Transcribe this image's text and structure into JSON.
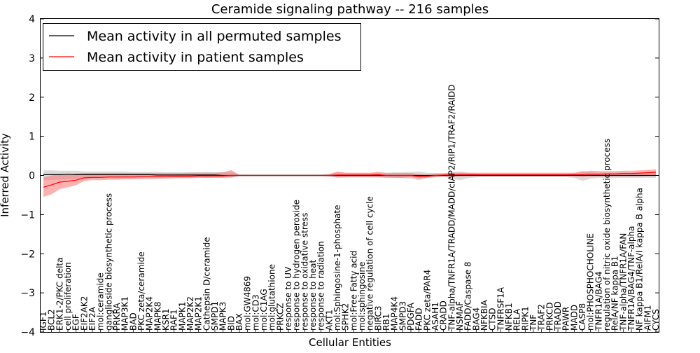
{
  "chart_data": {
    "type": "line",
    "title": "Ceramide signaling pathway -- 216 samples",
    "xlabel": "Cellular Entities",
    "ylabel": "Inferred Activity",
    "ylim": [
      -4,
      4
    ],
    "yticks": [
      -4,
      -3,
      -2,
      -1,
      0,
      1,
      2,
      3,
      4
    ],
    "legend_position": "top-left",
    "colors": {
      "permuted": "#000000",
      "patient": "#ff0000",
      "permuted_band": "#bbbbbb",
      "patient_band": "#ff7070"
    },
    "categories": [
      "IGF1",
      "BCL2",
      "ERK1-2/PKC delta",
      "cell proliferation",
      "EGF",
      "EIF2AK2",
      "EIF2A",
      "mol:ceramide",
      "ganglioside biosynthetic process",
      "PRKRA",
      "MAP3K1",
      "BAD",
      "PKC zeta/ceramide",
      "MAP2K4",
      "MAPK8",
      "KSR1",
      "RAF1",
      "MAPK1",
      "MAP2K2",
      "MAP2K1",
      "Cathepsin D/ceramide",
      "SMPD1",
      "MAPK3",
      "BID",
      "BAX",
      "mol:GW4869",
      "mol:CD3",
      "mol:C1AG",
      "mol:glutathione",
      "PRKCZ",
      "response to UV",
      "response to hydrogen peroxide",
      "response to oxidative stress",
      "response to heat",
      "response to radiation",
      "AKT1",
      "mol:Sphingosine-1-phosphate",
      "SPHK2",
      "mol:Free Fatty acid",
      "mol:sphingosine",
      "negative regulation of cell cycle",
      "BIRC3",
      "RB1",
      "MAP4K4",
      "SMPD3",
      "PDGFA",
      "FADD",
      "PKC zeta/PAR4",
      "ASAH1",
      "CRADD",
      "TNF-alpha/TNFR1A/TRADD/MADD/cIAP2/RIP1/TRAF2/RAIDD",
      "NSMAF",
      "FADD/Caspase 8",
      "BAG4",
      "NFKBIA",
      "CTSD",
      "TNFRSF1A",
      "NFKB1",
      "RELA",
      "RIPK1",
      "TNF",
      "TRAF2",
      "PRKCD",
      "TRADD",
      "PAWR",
      "MADD",
      "CASP8",
      "mol:PHOSPHOCHOLINE",
      "TNFR1A/BAG4",
      "regulation of nitric oxide biosynthetic process",
      "RelA/NF kappa B1",
      "TNF-alpha/TNFR1A/FAN",
      "TNFR1A/BAG4/TNF-alpha",
      "NF kappa B1/RelA/I kappa B alpha",
      "AIFM1",
      "CYCS"
    ],
    "series": [
      {
        "name": "Mean activity in all permuted samples",
        "values": [
          0.02,
          0.02,
          0.02,
          0.03,
          0.02,
          0.02,
          0.02,
          0.02,
          0.02,
          0.02,
          0.02,
          0.02,
          0.02,
          0.02,
          0.01,
          0.01,
          0.01,
          0.01,
          0.01,
          0.01,
          0.01,
          0.01,
          0.0,
          0.0,
          0.0,
          0.0,
          0.0,
          0.0,
          0.0,
          0.0,
          0.0,
          0.0,
          0.0,
          0.0,
          0.0,
          0.0,
          0.0,
          0.0,
          0.0,
          0.0,
          0.0,
          0.0,
          0.0,
          0.0,
          0.0,
          0.0,
          0.0,
          0.0,
          0.0,
          0.0,
          0.0,
          0.0,
          0.0,
          0.0,
          0.0,
          0.0,
          0.0,
          0.0,
          0.0,
          0.0,
          0.0,
          0.0,
          0.0,
          0.0,
          0.0,
          0.0,
          0.0,
          0.0,
          0.0,
          0.0,
          0.0,
          0.0,
          0.0,
          0.0,
          0.0,
          0.0
        ],
        "band_lo": [
          -0.12,
          -0.12,
          -0.1,
          -0.1,
          -0.08,
          -0.08,
          -0.08,
          -0.07,
          -0.07,
          -0.07,
          -0.07,
          -0.06,
          -0.06,
          -0.06,
          -0.06,
          -0.05,
          -0.05,
          -0.05,
          -0.05,
          -0.05,
          -0.06,
          -0.05,
          -0.05,
          -0.06,
          -0.02,
          -0.02,
          -0.02,
          -0.02,
          -0.02,
          -0.02,
          -0.02,
          -0.02,
          -0.02,
          -0.02,
          -0.02,
          -0.03,
          -0.06,
          -0.05,
          -0.04,
          -0.04,
          -0.04,
          -0.05,
          -0.05,
          -0.06,
          -0.07,
          -0.08,
          -0.12,
          -0.06,
          -0.05,
          -0.03,
          -0.08,
          -0.12,
          -0.07,
          -0.05,
          -0.04,
          -0.04,
          -0.04,
          -0.04,
          -0.04,
          -0.04,
          -0.04,
          -0.04,
          -0.04,
          -0.04,
          -0.04,
          -0.06,
          -0.14,
          -0.08,
          -0.06,
          -0.06,
          -0.06,
          -0.06,
          -0.06,
          -0.06,
          -0.06,
          -0.06
        ],
        "band_hi": [
          0.13,
          0.13,
          0.12,
          0.12,
          0.12,
          0.1,
          0.1,
          0.1,
          0.1,
          0.1,
          0.1,
          0.09,
          0.09,
          0.09,
          0.09,
          0.08,
          0.08,
          0.08,
          0.08,
          0.08,
          0.09,
          0.08,
          0.08,
          0.09,
          0.03,
          0.03,
          0.03,
          0.03,
          0.03,
          0.03,
          0.03,
          0.03,
          0.03,
          0.03,
          0.03,
          0.04,
          0.08,
          0.07,
          0.06,
          0.06,
          0.06,
          0.07,
          0.07,
          0.08,
          0.08,
          0.09,
          0.1,
          0.07,
          0.06,
          0.04,
          0.08,
          0.1,
          0.07,
          0.05,
          0.04,
          0.04,
          0.04,
          0.04,
          0.04,
          0.04,
          0.04,
          0.04,
          0.04,
          0.04,
          0.04,
          0.06,
          0.12,
          0.08,
          0.07,
          0.07,
          0.07,
          0.07,
          0.07,
          0.07,
          0.07,
          0.07
        ]
      },
      {
        "name": "Mean activity in patient samples",
        "values": [
          -0.3,
          -0.24,
          -0.17,
          -0.15,
          -0.12,
          -0.06,
          -0.05,
          -0.05,
          -0.04,
          -0.04,
          -0.04,
          -0.04,
          -0.03,
          -0.03,
          -0.03,
          -0.03,
          -0.02,
          -0.02,
          -0.02,
          -0.01,
          -0.01,
          -0.01,
          -0.01,
          0.0,
          0.0,
          0.0,
          0.0,
          0.0,
          0.0,
          0.0,
          0.0,
          0.0,
          0.0,
          0.0,
          0.0,
          0.0,
          0.01,
          0.01,
          0.01,
          0.01,
          0.01,
          0.02,
          0.0,
          0.0,
          0.0,
          0.0,
          -0.03,
          -0.02,
          0.0,
          0.01,
          0.01,
          0.02,
          0.02,
          0.02,
          0.02,
          0.02,
          0.02,
          0.02,
          0.02,
          0.02,
          0.02,
          0.02,
          0.02,
          0.02,
          0.02,
          0.02,
          0.02,
          0.03,
          0.03,
          0.04,
          0.04,
          0.05,
          0.05,
          0.06,
          0.07,
          0.08
        ],
        "band_lo": [
          -0.55,
          -0.48,
          -0.35,
          -0.3,
          -0.25,
          -0.14,
          -0.12,
          -0.12,
          -0.11,
          -0.11,
          -0.1,
          -0.1,
          -0.09,
          -0.09,
          -0.08,
          -0.08,
          -0.07,
          -0.07,
          -0.07,
          -0.06,
          -0.06,
          -0.06,
          -0.06,
          -0.05,
          -0.01,
          -0.01,
          -0.01,
          -0.01,
          -0.01,
          -0.01,
          -0.01,
          -0.01,
          -0.01,
          -0.01,
          -0.01,
          -0.02,
          -0.05,
          -0.05,
          -0.05,
          -0.05,
          -0.05,
          -0.05,
          -0.06,
          -0.06,
          -0.06,
          -0.05,
          -0.08,
          -0.06,
          -0.04,
          -0.03,
          -0.03,
          -0.02,
          -0.02,
          -0.02,
          -0.02,
          -0.02,
          -0.02,
          -0.02,
          -0.02,
          -0.02,
          -0.02,
          -0.02,
          -0.02,
          -0.02,
          -0.02,
          -0.02,
          -0.03,
          -0.02,
          -0.02,
          -0.02,
          -0.02,
          -0.02,
          -0.02,
          -0.02,
          -0.01,
          0.0
        ],
        "band_hi": [
          -0.05,
          0.0,
          0.03,
          0.02,
          0.05,
          0.06,
          0.06,
          0.06,
          0.06,
          0.06,
          0.06,
          0.06,
          0.06,
          0.06,
          0.06,
          0.06,
          0.06,
          0.06,
          0.07,
          0.07,
          0.07,
          0.07,
          0.08,
          0.14,
          0.01,
          0.01,
          0.01,
          0.01,
          0.01,
          0.01,
          0.01,
          0.01,
          0.01,
          0.01,
          0.01,
          0.03,
          0.1,
          0.07,
          0.07,
          0.07,
          0.07,
          0.09,
          0.06,
          0.06,
          0.06,
          0.06,
          0.03,
          0.02,
          0.05,
          0.06,
          0.07,
          0.07,
          0.07,
          0.07,
          0.07,
          0.07,
          0.07,
          0.07,
          0.07,
          0.07,
          0.07,
          0.07,
          0.07,
          0.07,
          0.07,
          0.07,
          0.09,
          0.12,
          0.11,
          0.11,
          0.11,
          0.12,
          0.12,
          0.13,
          0.14,
          0.16
        ]
      }
    ]
  }
}
